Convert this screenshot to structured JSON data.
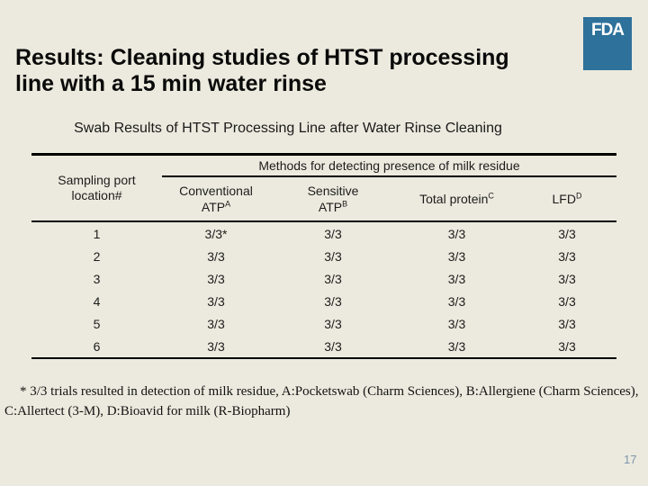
{
  "title": {
    "line1": "Results: Cleaning studies of HTST processing",
    "line2": "line with a 15 min water rinse"
  },
  "logo": {
    "text": "FDA"
  },
  "table": {
    "caption": "Swab Results of HTST Processing Line after Water Rinse Cleaning",
    "port_header": {
      "line1": "Sampling port",
      "line2": "location#"
    },
    "methods_header": "Methods for detecting presence of milk residue",
    "method_columns": [
      {
        "lines": [
          "Conventional",
          "ATP"
        ],
        "sup": "A"
      },
      {
        "lines": [
          "Sensitive",
          "ATP"
        ],
        "sup": "B"
      },
      {
        "lines": [
          "Total protein"
        ],
        "sup": "C"
      },
      {
        "lines": [
          "LFD"
        ],
        "sup": "D"
      }
    ],
    "rows": [
      {
        "port": "1",
        "values": [
          "3/3*",
          "3/3",
          "3/3",
          "3/3"
        ]
      },
      {
        "port": "2",
        "values": [
          "3/3",
          "3/3",
          "3/3",
          "3/3"
        ]
      },
      {
        "port": "3",
        "values": [
          "3/3",
          "3/3",
          "3/3",
          "3/3"
        ]
      },
      {
        "port": "4",
        "values": [
          "3/3",
          "3/3",
          "3/3",
          "3/3"
        ]
      },
      {
        "port": "5",
        "values": [
          "3/3",
          "3/3",
          "3/3",
          "3/3"
        ]
      },
      {
        "port": "6",
        "values": [
          "3/3",
          "3/3",
          "3/3",
          "3/3"
        ]
      }
    ]
  },
  "footnote": "* 3/3 trials resulted in detection of milk residue, A:Pocketswab (Charm Sciences), B:Allergiene (Charm Sciences), C:Allertect (3-M), D:Bioavid for milk (R-Biopharm)",
  "page_number": "17",
  "colors": {
    "background": "#ECEADE",
    "logo_blue": "#2E719A",
    "page_number_blue": "#7E94AB",
    "text": "#141414"
  }
}
